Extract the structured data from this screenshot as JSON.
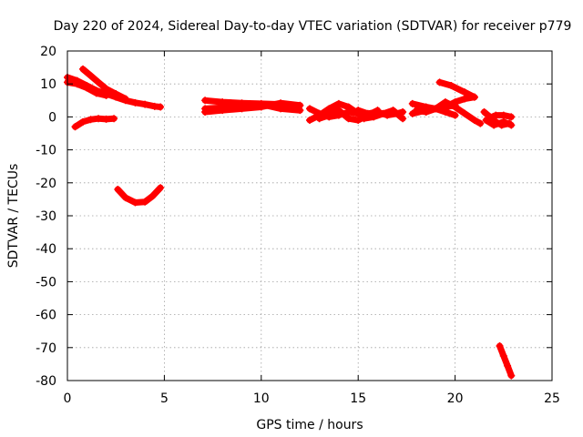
{
  "chart_data": {
    "type": "scatter",
    "title": "Day 220 of 2024, Sidereal Day-to-day VTEC variation (SDTVAR) for receiver p779",
    "xlabel": "GPS time / hours",
    "ylabel": "SDTVAR / TECUs",
    "xlim": [
      0,
      25
    ],
    "ylim": [
      -80,
      20
    ],
    "x_ticks": [
      0,
      5,
      10,
      15,
      20,
      25
    ],
    "y_ticks": [
      -80,
      -70,
      -60,
      -50,
      -40,
      -30,
      -20,
      -10,
      0,
      10,
      20
    ],
    "grid": true,
    "color": "#ff0000",
    "series": [
      {
        "name": "arc1",
        "points": [
          [
            0.0,
            12.0
          ],
          [
            0.5,
            11.0
          ],
          [
            1.0,
            9.5
          ],
          [
            1.5,
            8.0
          ],
          [
            2.0,
            7.0
          ],
          [
            2.5,
            6.0
          ],
          [
            3.0,
            5.0
          ],
          [
            3.5,
            4.3
          ],
          [
            4.0,
            3.8
          ],
          [
            4.5,
            3.2
          ],
          [
            4.8,
            3.0
          ]
        ]
      },
      {
        "name": "arc2",
        "points": [
          [
            0.0,
            10.5
          ],
          [
            0.5,
            10.0
          ],
          [
            1.0,
            8.8
          ],
          [
            1.5,
            7.2
          ],
          [
            2.0,
            6.5
          ]
        ]
      },
      {
        "name": "arc3",
        "points": [
          [
            0.8,
            14.5
          ],
          [
            1.2,
            12.5
          ],
          [
            1.6,
            10.5
          ],
          [
            2.0,
            8.5
          ],
          [
            2.5,
            7.0
          ],
          [
            3.0,
            5.5
          ]
        ]
      },
      {
        "name": "arc4",
        "points": [
          [
            0.4,
            -3.0
          ],
          [
            0.8,
            -1.5
          ],
          [
            1.2,
            -0.8
          ],
          [
            1.6,
            -0.5
          ],
          [
            2.0,
            -0.7
          ],
          [
            2.4,
            -0.5
          ]
        ]
      },
      {
        "name": "arc5",
        "points": [
          [
            2.6,
            -22.0
          ],
          [
            3.0,
            -24.5
          ],
          [
            3.5,
            -26.0
          ],
          [
            4.0,
            -25.8
          ],
          [
            4.4,
            -24.0
          ],
          [
            4.8,
            -21.5
          ]
        ]
      },
      {
        "name": "arc6",
        "points": [
          [
            7.1,
            5.0
          ],
          [
            8.0,
            4.5
          ],
          [
            9.0,
            4.2
          ],
          [
            10.0,
            4.0
          ],
          [
            11.0,
            3.8
          ],
          [
            11.5,
            3.3
          ]
        ]
      },
      {
        "name": "arc7",
        "points": [
          [
            7.1,
            2.5
          ],
          [
            8.0,
            2.8
          ],
          [
            9.0,
            3.0
          ],
          [
            10.0,
            3.8
          ],
          [
            11.0,
            2.5
          ],
          [
            12.0,
            2.0
          ]
        ]
      },
      {
        "name": "arc8",
        "points": [
          [
            7.1,
            1.5
          ],
          [
            8.0,
            2.0
          ],
          [
            9.0,
            2.5
          ],
          [
            10.0,
            3.0
          ],
          [
            11.0,
            4.2
          ],
          [
            12.0,
            3.5
          ]
        ]
      },
      {
        "name": "arc9",
        "points": [
          [
            12.5,
            2.5
          ],
          [
            13.0,
            1.0
          ],
          [
            13.5,
            0.0
          ],
          [
            14.0,
            0.5
          ],
          [
            14.5,
            1.5
          ],
          [
            15.0,
            1.0
          ]
        ]
      },
      {
        "name": "arc10",
        "points": [
          [
            12.5,
            -1.0
          ],
          [
            13.0,
            0.5
          ],
          [
            13.5,
            2.5
          ],
          [
            14.0,
            4.0
          ],
          [
            14.5,
            3.0
          ],
          [
            15.0,
            1.0
          ],
          [
            15.5,
            0.0
          ]
        ]
      },
      {
        "name": "arc11",
        "points": [
          [
            13.0,
            -0.5
          ],
          [
            13.5,
            0.5
          ],
          [
            14.0,
            2.0
          ],
          [
            14.5,
            -0.5
          ],
          [
            15.0,
            -1.0
          ],
          [
            15.5,
            0.5
          ],
          [
            16.0,
            2.0
          ]
        ]
      },
      {
        "name": "arc12",
        "points": [
          [
            15.0,
            2.0
          ],
          [
            15.5,
            1.0
          ],
          [
            16.0,
            1.5
          ],
          [
            16.5,
            0.5
          ],
          [
            17.0,
            1.0
          ],
          [
            17.3,
            1.5
          ]
        ]
      },
      {
        "name": "arc13",
        "points": [
          [
            15.3,
            -0.5
          ],
          [
            15.8,
            0.0
          ],
          [
            16.3,
            1.0
          ],
          [
            16.8,
            2.0
          ],
          [
            17.3,
            -0.5
          ]
        ]
      },
      {
        "name": "arc14",
        "points": [
          [
            17.8,
            1.0
          ],
          [
            18.5,
            2.0
          ],
          [
            19.0,
            2.5
          ],
          [
            19.5,
            3.0
          ],
          [
            20.0,
            3.5
          ]
        ]
      },
      {
        "name": "arc15",
        "points": [
          [
            17.8,
            4.0
          ],
          [
            18.5,
            3.0
          ],
          [
            19.0,
            2.5
          ],
          [
            19.5,
            1.5
          ],
          [
            20.0,
            0.5
          ]
        ]
      },
      {
        "name": "arc16",
        "points": [
          [
            18.0,
            2.0
          ],
          [
            18.5,
            1.5
          ],
          [
            19.0,
            2.5
          ],
          [
            19.5,
            4.5
          ],
          [
            20.0,
            3.0
          ],
          [
            20.5,
            1.0
          ],
          [
            21.0,
            -1.0
          ],
          [
            21.3,
            -2.0
          ]
        ]
      },
      {
        "name": "arc17",
        "points": [
          [
            19.2,
            10.5
          ],
          [
            19.8,
            9.5
          ],
          [
            20.5,
            7.5
          ],
          [
            21.0,
            6.0
          ]
        ]
      },
      {
        "name": "arc18",
        "points": [
          [
            19.5,
            3.0
          ],
          [
            20.0,
            4.5
          ],
          [
            20.5,
            5.5
          ],
          [
            21.0,
            6.0
          ]
        ]
      },
      {
        "name": "arc19",
        "points": [
          [
            21.5,
            1.5
          ],
          [
            21.8,
            0.0
          ],
          [
            22.1,
            -1.5
          ],
          [
            22.4,
            -2.5
          ],
          [
            22.8,
            -2.0
          ]
        ]
      },
      {
        "name": "arc20",
        "points": [
          [
            21.6,
            -1.0
          ],
          [
            22.0,
            -2.5
          ],
          [
            22.5,
            -1.5
          ],
          [
            22.9,
            -2.5
          ]
        ]
      },
      {
        "name": "arc21",
        "points": [
          [
            21.7,
            -0.5
          ],
          [
            22.1,
            0.5
          ],
          [
            22.5,
            0.5
          ],
          [
            22.9,
            0.0
          ]
        ]
      },
      {
        "name": "arc22",
        "points": [
          [
            22.3,
            -69.5
          ],
          [
            22.5,
            -72.5
          ],
          [
            22.7,
            -75.5
          ],
          [
            22.9,
            -78.5
          ]
        ]
      }
    ]
  }
}
